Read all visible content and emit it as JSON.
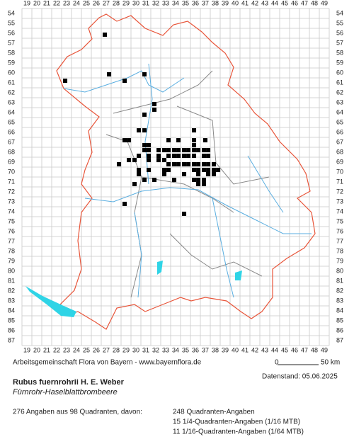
{
  "grid": {
    "columns": [
      19,
      20,
      21,
      22,
      23,
      24,
      25,
      26,
      27,
      28,
      29,
      30,
      31,
      32,
      33,
      34,
      35,
      36,
      37,
      38,
      39,
      40,
      41,
      42,
      43,
      44,
      45,
      46,
      47,
      48,
      49
    ],
    "rows": [
      54,
      55,
      56,
      57,
      58,
      59,
      60,
      61,
      62,
      63,
      64,
      65,
      66,
      67,
      68,
      69,
      70,
      71,
      72,
      73,
      74,
      75,
      76,
      77,
      78,
      79,
      80,
      81,
      82,
      83,
      84,
      85,
      86,
      87
    ]
  },
  "occurrences": [
    [
      26.86,
      56.14
    ],
    [
      27.29,
      60.14
    ],
    [
      30.86,
      60.14
    ],
    [
      22.86,
      60.79
    ],
    [
      28.86,
      60.79
    ],
    [
      31.86,
      63.14
    ],
    [
      31.86,
      63.71
    ],
    [
      30.86,
      64.21
    ],
    [
      30.29,
      65.79
    ],
    [
      30.86,
      65.79
    ],
    [
      35.86,
      65.79
    ],
    [
      28.86,
      66.79
    ],
    [
      29.29,
      66.79
    ],
    [
      33.29,
      66.79
    ],
    [
      34.29,
      66.79
    ],
    [
      35.86,
      66.79
    ],
    [
      37,
      66.79
    ],
    [
      30.86,
      67.29
    ],
    [
      31.29,
      67.29
    ],
    [
      35.86,
      67.29
    ],
    [
      30.86,
      67.79
    ],
    [
      31.29,
      67.79
    ],
    [
      32.29,
      67.79
    ],
    [
      32.86,
      67.79
    ],
    [
      33.29,
      67.79
    ],
    [
      33.86,
      67.79
    ],
    [
      34.29,
      67.79
    ],
    [
      34.86,
      67.79
    ],
    [
      35.29,
      67.79
    ],
    [
      35.86,
      67.79
    ],
    [
      36.29,
      67.79
    ],
    [
      36.86,
      67.79
    ],
    [
      37.29,
      67.79
    ],
    [
      30.29,
      68.36
    ],
    [
      31.29,
      68.36
    ],
    [
      32.29,
      68.36
    ],
    [
      33.29,
      68.36
    ],
    [
      33.86,
      68.36
    ],
    [
      34.29,
      68.36
    ],
    [
      34.86,
      68.36
    ],
    [
      35.29,
      68.36
    ],
    [
      35.86,
      68.36
    ],
    [
      36.86,
      68.36
    ],
    [
      37.29,
      68.36
    ],
    [
      29.29,
      68.79
    ],
    [
      29.86,
      68.79
    ],
    [
      31.29,
      68.79
    ],
    [
      32.29,
      68.79
    ],
    [
      32.86,
      68.79
    ],
    [
      28.29,
      69.21
    ],
    [
      33.29,
      69.21
    ],
    [
      33.86,
      69.21
    ],
    [
      34.29,
      69.21
    ],
    [
      34.86,
      69.21
    ],
    [
      35.29,
      69.21
    ],
    [
      35.86,
      69.21
    ],
    [
      36.29,
      69.21
    ],
    [
      36.86,
      69.21
    ],
    [
      37.29,
      69.21
    ],
    [
      37.86,
      69.21
    ],
    [
      30.29,
      69.79
    ],
    [
      31.29,
      69.79
    ],
    [
      32.86,
      69.79
    ],
    [
      33.29,
      69.79
    ],
    [
      35.86,
      69.79
    ],
    [
      36.29,
      69.79
    ],
    [
      36.86,
      69.79
    ],
    [
      37.29,
      69.79
    ],
    [
      37.86,
      69.79
    ],
    [
      38.29,
      69.79
    ],
    [
      30.29,
      70.21
    ],
    [
      32.86,
      70.21
    ],
    [
      34.86,
      70.21
    ],
    [
      36.29,
      70.21
    ],
    [
      37.29,
      70.21
    ],
    [
      37.86,
      70.21
    ],
    [
      30.86,
      70.79
    ],
    [
      31.86,
      70.79
    ],
    [
      33.86,
      70.79
    ],
    [
      35.86,
      70.79
    ],
    [
      36.29,
      70.79
    ],
    [
      36.86,
      70.79
    ],
    [
      29.86,
      71.21
    ],
    [
      36.29,
      71.21
    ],
    [
      36.86,
      71.21
    ],
    [
      28.86,
      73.21
    ],
    [
      34.86,
      74.21
    ]
  ],
  "footer": {
    "credit": "Arbeitsgemeinschaft Flora von Bayern - www.bayernflora.de",
    "scale_start": "0",
    "scale_end": "50 km",
    "date": "Datenstand: 05.06.2025",
    "species": "Rubus fuernrohrii H. E. Weber",
    "common_name": "Fürnrohr-Haselblattbrombeere",
    "summary": "276 Angaben aus 98 Quadranten, davon:",
    "detail": [
      "248 Quadranten-Angaben",
      "15 1/4-Quadranten-Angaben (1/16 MTB)",
      "11 1/16-Quadranten-Angaben (1/64 MTB)"
    ]
  }
}
